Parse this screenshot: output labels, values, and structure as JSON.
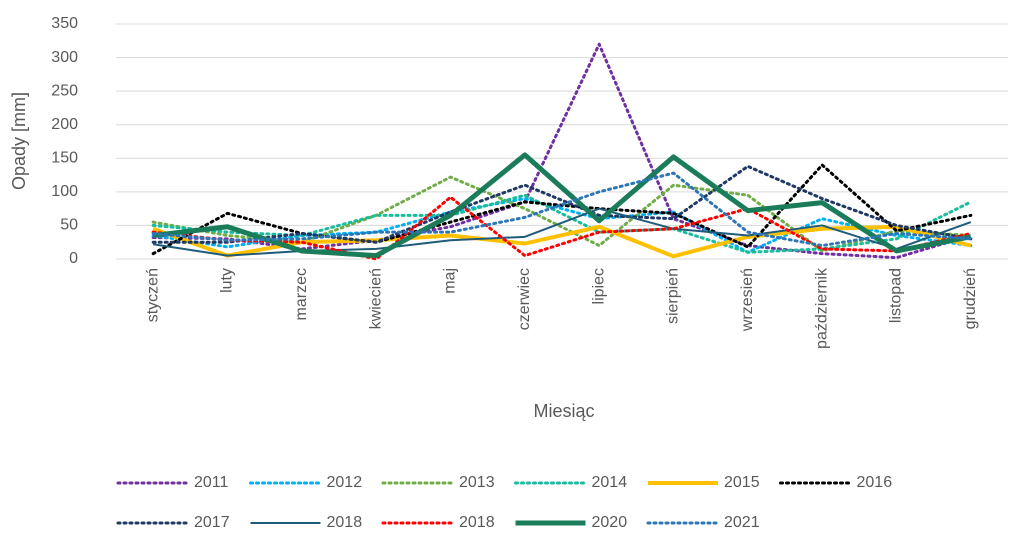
{
  "chart_data": {
    "type": "line",
    "ylabel": "Opady [mm]",
    "xlabel": "Miesiąc",
    "categories": [
      "styczeń",
      "luty",
      "marzec",
      "kwiecień",
      "maj",
      "czerwiec",
      "lipiec",
      "sierpień",
      "wrzesień",
      "październik",
      "listopad",
      "grudzień"
    ],
    "ylim": [
      0,
      350
    ],
    "yticks": [
      0,
      50,
      100,
      150,
      200,
      250,
      300,
      350
    ],
    "grid": true,
    "legend": "bottom",
    "series": [
      {
        "name": "2011",
        "color": "#7030a0",
        "style": "dotted",
        "values": [
          32,
          30,
          15,
          28,
          48,
          85,
          320,
          60,
          20,
          8,
          2,
          35
        ]
      },
      {
        "name": "2012",
        "color": "#00b0f0",
        "style": "dotted",
        "values": [
          35,
          18,
          35,
          40,
          70,
          90,
          60,
          70,
          10,
          60,
          35,
          20
        ]
      },
      {
        "name": "2013",
        "color": "#70ad47",
        "style": "dotted",
        "values": [
          55,
          35,
          25,
          65,
          122,
          75,
          20,
          110,
          95,
          12,
          42,
          35
        ]
      },
      {
        "name": "2014",
        "color": "#1abc9c",
        "style": "dotted",
        "values": [
          50,
          40,
          35,
          65,
          65,
          95,
          40,
          45,
          10,
          15,
          30,
          85
        ]
      },
      {
        "name": "2015",
        "color": "#ffc000",
        "style": "thick",
        "values": [
          45,
          5,
          25,
          28,
          35,
          23,
          48,
          4,
          33,
          45,
          48,
          20
        ]
      },
      {
        "name": "2016",
        "color": "#000000",
        "style": "dotted",
        "values": [
          8,
          68,
          38,
          25,
          55,
          85,
          75,
          68,
          18,
          140,
          42,
          65
        ]
      },
      {
        "name": "2017",
        "color": "#1f3864",
        "style": "dotted",
        "values": [
          25,
          25,
          38,
          25,
          70,
          110,
          65,
          60,
          138,
          90,
          50,
          30
        ]
      },
      {
        "name": "2018",
        "color": "#1f5c7a",
        "style": "solid",
        "values": [
          22,
          5,
          12,
          15,
          28,
          33,
          75,
          45,
          35,
          50,
          15,
          55
        ]
      },
      {
        "name": "2018",
        "color": "#ff0000",
        "style": "dotted",
        "values": [
          40,
          28,
          25,
          0,
          92,
          5,
          40,
          45,
          75,
          15,
          12,
          38
        ]
      },
      {
        "name": "2020",
        "color": "#1b7c5a",
        "style": "heavy",
        "values": [
          35,
          48,
          12,
          5,
          65,
          155,
          57,
          152,
          72,
          84,
          12,
          33
        ]
      },
      {
        "name": "2021",
        "color": "#2e75b6",
        "style": "dotted",
        "values": [
          38,
          28,
          30,
          40,
          40,
          62,
          100,
          128,
          40,
          20,
          38,
          30
        ]
      }
    ]
  }
}
